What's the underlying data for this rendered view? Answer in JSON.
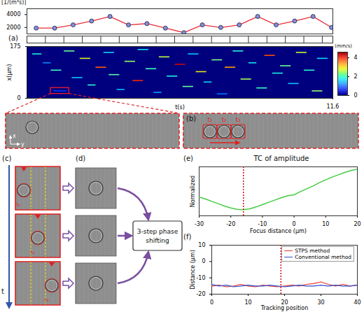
{
  "chart_data": [
    {
      "type": "line",
      "ylabel": "[1/(m³s)]",
      "x": [
        0.35,
        1.05,
        1.75,
        2.45,
        3.15,
        3.85,
        4.55,
        5.25,
        5.95,
        6.65,
        7.35,
        8.05,
        8.75,
        9.45,
        10.15,
        10.85,
        11.55
      ],
      "values": [
        1900,
        1900,
        2400,
        3000,
        3700,
        2400,
        2600,
        1900,
        1200,
        2400,
        2000,
        2400,
        3700,
        2400,
        3000,
        3700,
        2000
      ],
      "xlim": [
        0,
        11.6
      ],
      "ylim": [
        1000,
        4900
      ],
      "yticks": [
        2000,
        4000
      ],
      "color": "#e8303a",
      "marker": "circle",
      "tick_labels": "y"
    },
    {
      "type": "segments",
      "xlabel": "t(s)",
      "ylabel": "x(μm)",
      "xlim": [
        0,
        11.6
      ],
      "xticks": [
        11.6
      ],
      "ylim": [
        0,
        175
      ],
      "yticks": [
        0,
        175
      ],
      "tracks": [
        {
          "t1": 0.2,
          "t2": 0.55,
          "x": 150,
          "v": 1.8
        },
        {
          "t1": 0.6,
          "t2": 0.9,
          "x": 120,
          "v": 1.2
        },
        {
          "t1": 0.9,
          "t2": 1.3,
          "x": 95,
          "v": 2.0
        },
        {
          "t1": 1.0,
          "t2": 1.5,
          "x": 25,
          "v": 0.8
        },
        {
          "t1": 1.4,
          "t2": 1.8,
          "x": 160,
          "v": 2.2
        },
        {
          "t1": 1.7,
          "t2": 2.1,
          "x": 70,
          "v": 1.5
        },
        {
          "t1": 2.0,
          "t2": 2.4,
          "x": 135,
          "v": 2.8
        },
        {
          "t1": 2.3,
          "t2": 2.6,
          "x": 45,
          "v": 1.9
        },
        {
          "t1": 2.6,
          "t2": 3.0,
          "x": 105,
          "v": 3.6
        },
        {
          "t1": 2.9,
          "t2": 3.3,
          "x": 155,
          "v": 1.6
        },
        {
          "t1": 3.1,
          "t2": 3.5,
          "x": 80,
          "v": 2.1
        },
        {
          "t1": 3.4,
          "t2": 3.7,
          "x": 30,
          "v": 1.4
        },
        {
          "t1": 3.7,
          "t2": 4.1,
          "x": 125,
          "v": 2.4
        },
        {
          "t1": 4.0,
          "t2": 4.4,
          "x": 60,
          "v": 3.9
        },
        {
          "t1": 4.2,
          "t2": 4.6,
          "x": 165,
          "v": 1.7
        },
        {
          "t1": 4.5,
          "t2": 4.9,
          "x": 100,
          "v": 2.0
        },
        {
          "t1": 4.8,
          "t2": 5.1,
          "x": 20,
          "v": 1.3
        },
        {
          "t1": 5.0,
          "t2": 5.4,
          "x": 140,
          "v": 2.6
        },
        {
          "t1": 5.3,
          "t2": 5.7,
          "x": 75,
          "v": 1.8
        },
        {
          "t1": 5.6,
          "t2": 6.0,
          "x": 115,
          "v": 4.2
        },
        {
          "t1": 5.9,
          "t2": 6.3,
          "x": 40,
          "v": 2.2
        },
        {
          "t1": 6.1,
          "t2": 6.5,
          "x": 150,
          "v": 1.5
        },
        {
          "t1": 6.4,
          "t2": 6.8,
          "x": 90,
          "v": 2.9
        },
        {
          "t1": 6.7,
          "t2": 7.0,
          "x": 55,
          "v": 1.6
        },
        {
          "t1": 7.0,
          "t2": 7.4,
          "x": 130,
          "v": 2.3
        },
        {
          "t1": 7.2,
          "t2": 7.6,
          "x": 15,
          "v": 1.1
        },
        {
          "t1": 7.5,
          "t2": 7.9,
          "x": 105,
          "v": 3.3
        },
        {
          "t1": 7.8,
          "t2": 8.2,
          "x": 160,
          "v": 1.9
        },
        {
          "t1": 8.1,
          "t2": 8.5,
          "x": 65,
          "v": 2.5
        },
        {
          "t1": 8.4,
          "t2": 8.7,
          "x": 120,
          "v": 1.7
        },
        {
          "t1": 8.7,
          "t2": 9.1,
          "x": 35,
          "v": 2.0
        },
        {
          "t1": 9.0,
          "t2": 9.4,
          "x": 145,
          "v": 3.7
        },
        {
          "t1": 9.3,
          "t2": 9.7,
          "x": 85,
          "v": 1.8
        },
        {
          "t1": 9.6,
          "t2": 10.0,
          "x": 110,
          "v": 2.2
        },
        {
          "t1": 9.9,
          "t2": 10.3,
          "x": 50,
          "v": 1.5
        },
        {
          "t1": 10.2,
          "t2": 10.6,
          "x": 155,
          "v": 2.7
        },
        {
          "t1": 10.5,
          "t2": 10.9,
          "x": 95,
          "v": 1.9
        },
        {
          "t1": 10.8,
          "t2": 11.2,
          "x": 25,
          "v": 2.4
        },
        {
          "t1": 11.0,
          "t2": 11.4,
          "x": 135,
          "v": 1.6
        }
      ],
      "colorbar": {
        "label": "(mm/s)",
        "range": [
          0,
          4.6
        ],
        "ticks": [
          0,
          2,
          4
        ]
      },
      "zoom_box": {
        "t": [
          0.9,
          1.6
        ],
        "x": [
          15,
          35
        ]
      }
    },
    {
      "type": "line",
      "title": "TC of amplitude",
      "xlabel": "Focus distance (μm)",
      "ylabel": "Normalized",
      "x": [
        -30,
        -28,
        -26,
        -24,
        -22,
        -20,
        -18,
        -16,
        -14,
        -12,
        -10,
        -8,
        -6,
        -4,
        -2,
        0,
        2,
        4,
        6,
        8,
        10,
        12,
        14,
        16,
        18,
        20
      ],
      "values": [
        0.4,
        0.36,
        0.31,
        0.26,
        0.21,
        0.17,
        0.14,
        0.13,
        0.15,
        0.19,
        0.24,
        0.29,
        0.34,
        0.39,
        0.43,
        0.45,
        0.52,
        0.58,
        0.64,
        0.71,
        0.77,
        0.83,
        0.88,
        0.93,
        0.97,
        1.0
      ],
      "xlim": [
        -30,
        20
      ],
      "xticks": [
        -30,
        -20,
        -10,
        0,
        10,
        20
      ],
      "ylim": [
        0,
        1.05
      ],
      "tick_labels": "x",
      "color": "#44cc44",
      "reference_x": -16
    },
    {
      "type": "line",
      "xlabel": "Tracking position",
      "ylabel": "Distance (μm)",
      "x": [
        0,
        2,
        4,
        6,
        8,
        10,
        12,
        14,
        16,
        18,
        20,
        22,
        24,
        26,
        28,
        30,
        32,
        34,
        36,
        38,
        40
      ],
      "series": [
        {
          "name": "STPS method",
          "color": "#e8352b",
          "values": [
            -15,
            -14.5,
            -15.5,
            -15,
            -14,
            -15,
            -15.5,
            -14.5,
            -15,
            -15.5,
            -15,
            -14.5,
            -15,
            -14,
            -13.5,
            -12.5,
            -14,
            -15,
            -14,
            -15,
            -14.5
          ]
        },
        {
          "name": "Conventional method",
          "color": "#3050d0",
          "values": [
            -14,
            -15,
            -14.5,
            -15.5,
            -15,
            -14.5,
            -15,
            -15,
            -14.5,
            -15,
            -15.5,
            -15,
            -14.5,
            -15,
            -15,
            -14.5,
            -15,
            -14.5,
            -15,
            -15,
            -14.5
          ]
        }
      ],
      "xlim": [
        0,
        40
      ],
      "xticks": [
        0,
        10,
        20,
        30,
        40
      ],
      "ylim": [
        -20,
        10
      ],
      "yticks": [
        -20,
        -10,
        0,
        10
      ],
      "legend": "top-right",
      "reference_x": 19
    }
  ],
  "figure": {
    "panel_labels": {
      "a": "(a)",
      "b": "(b)",
      "c": "(c)",
      "d": "(d)",
      "e": "(e)",
      "f": "(f)"
    },
    "orientation_axes": [
      "x",
      "y"
    ],
    "zoom_times": [
      "t₁",
      "t₂",
      "t₃"
    ],
    "time_axis": "t",
    "process": "3-step phase shifting"
  }
}
